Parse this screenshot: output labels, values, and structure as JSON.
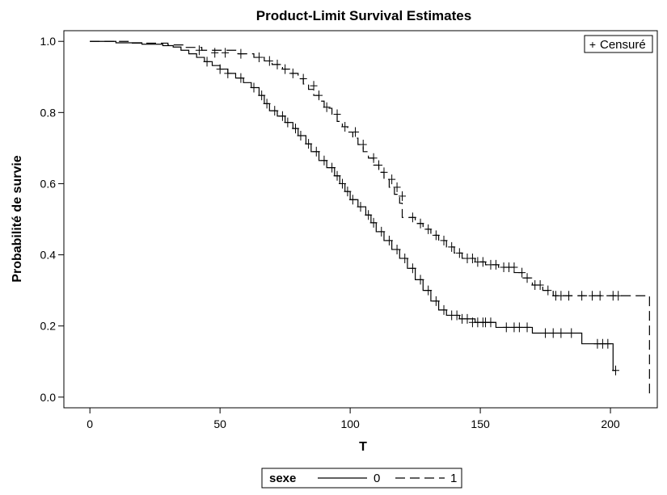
{
  "chart_data": {
    "type": "line",
    "subtype": "kaplan-meier step",
    "title": "Product-Limit Survival Estimates",
    "xlabel": "T",
    "ylabel": "Probabilité de survie",
    "xlim": [
      -10,
      218
    ],
    "ylim": [
      -0.03,
      1.03
    ],
    "xticks": [
      0,
      50,
      100,
      150,
      200
    ],
    "yticks": [
      "0.0",
      "0.2",
      "0.4",
      "0.6",
      "0.8",
      "1.0"
    ],
    "grid": false,
    "censor_legend": {
      "symbol": "+",
      "label": "Censuré",
      "placement": "top-right"
    },
    "legend": {
      "title": "sexe",
      "placement": "bottom-center"
    },
    "series": [
      {
        "name": "0",
        "dash": "solid",
        "steps": [
          [
            0,
            1.0
          ],
          [
            10,
            0.996
          ],
          [
            20,
            0.992
          ],
          [
            28,
            0.988
          ],
          [
            32,
            0.984
          ],
          [
            35,
            0.975
          ],
          [
            38,
            0.965
          ],
          [
            41,
            0.955
          ],
          [
            44,
            0.943
          ],
          [
            47,
            0.932
          ],
          [
            50,
            0.922
          ],
          [
            53,
            0.91
          ],
          [
            56,
            0.897
          ],
          [
            59,
            0.884
          ],
          [
            62,
            0.87
          ],
          [
            65,
            0.848
          ],
          [
            67,
            0.825
          ],
          [
            69,
            0.805
          ],
          [
            72,
            0.79
          ],
          [
            75,
            0.772
          ],
          [
            78,
            0.755
          ],
          [
            80,
            0.735
          ],
          [
            83,
            0.712
          ],
          [
            85,
            0.69
          ],
          [
            88,
            0.665
          ],
          [
            91,
            0.645
          ],
          [
            94,
            0.622
          ],
          [
            96,
            0.6
          ],
          [
            98,
            0.578
          ],
          [
            100,
            0.555
          ],
          [
            103,
            0.535
          ],
          [
            106,
            0.512
          ],
          [
            108,
            0.49
          ],
          [
            110,
            0.465
          ],
          [
            113,
            0.44
          ],
          [
            116,
            0.415
          ],
          [
            119,
            0.39
          ],
          [
            122,
            0.362
          ],
          [
            125,
            0.33
          ],
          [
            128,
            0.3
          ],
          [
            131,
            0.27
          ],
          [
            134,
            0.245
          ],
          [
            137,
            0.23
          ],
          [
            142,
            0.22
          ],
          [
            148,
            0.21
          ],
          [
            156,
            0.196
          ],
          [
            170,
            0.18
          ],
          [
            189,
            0.15
          ],
          [
            201,
            0.075
          ]
        ],
        "censored": [
          [
            45,
            0.943
          ],
          [
            50,
            0.922
          ],
          [
            53,
            0.91
          ],
          [
            58,
            0.897
          ],
          [
            63,
            0.87
          ],
          [
            66,
            0.848
          ],
          [
            68,
            0.825
          ],
          [
            71,
            0.805
          ],
          [
            74,
            0.79
          ],
          [
            76,
            0.772
          ],
          [
            79,
            0.755
          ],
          [
            81,
            0.735
          ],
          [
            84,
            0.712
          ],
          [
            87,
            0.69
          ],
          [
            90,
            0.665
          ],
          [
            93,
            0.645
          ],
          [
            95,
            0.622
          ],
          [
            97,
            0.6
          ],
          [
            99,
            0.578
          ],
          [
            101,
            0.555
          ],
          [
            104,
            0.535
          ],
          [
            107,
            0.512
          ],
          [
            109,
            0.49
          ],
          [
            112,
            0.465
          ],
          [
            115,
            0.44
          ],
          [
            118,
            0.415
          ],
          [
            121,
            0.39
          ],
          [
            124,
            0.362
          ],
          [
            127,
            0.33
          ],
          [
            130,
            0.3
          ],
          [
            133,
            0.27
          ],
          [
            136,
            0.245
          ],
          [
            139,
            0.23
          ],
          [
            141,
            0.23
          ],
          [
            143,
            0.22
          ],
          [
            145,
            0.22
          ],
          [
            147,
            0.21
          ],
          [
            149,
            0.21
          ],
          [
            151,
            0.21
          ],
          [
            152,
            0.21
          ],
          [
            154,
            0.21
          ],
          [
            160,
            0.196
          ],
          [
            163,
            0.196
          ],
          [
            165,
            0.196
          ],
          [
            168,
            0.196
          ],
          [
            175,
            0.18
          ],
          [
            178,
            0.18
          ],
          [
            181,
            0.18
          ],
          [
            185,
            0.18
          ],
          [
            195,
            0.15
          ],
          [
            197,
            0.15
          ],
          [
            199,
            0.15
          ],
          [
            202,
            0.075
          ]
        ],
        "end_x": 202
      },
      {
        "name": "1",
        "dash": "dashed",
        "steps": [
          [
            0,
            1.0
          ],
          [
            15,
            0.995
          ],
          [
            30,
            0.99
          ],
          [
            37,
            0.983
          ],
          [
            43,
            0.975
          ],
          [
            57,
            0.965
          ],
          [
            63,
            0.955
          ],
          [
            67,
            0.945
          ],
          [
            70,
            0.935
          ],
          [
            74,
            0.922
          ],
          [
            77,
            0.91
          ],
          [
            80,
            0.895
          ],
          [
            82,
            0.88
          ],
          [
            84,
            0.865
          ],
          [
            86,
            0.848
          ],
          [
            88,
            0.832
          ],
          [
            90,
            0.812
          ],
          [
            93,
            0.795
          ],
          [
            95,
            0.775
          ],
          [
            97,
            0.76
          ],
          [
            99,
            0.745
          ],
          [
            101,
            0.728
          ],
          [
            103,
            0.71
          ],
          [
            105,
            0.69
          ],
          [
            107,
            0.672
          ],
          [
            109,
            0.652
          ],
          [
            111,
            0.632
          ],
          [
            113,
            0.612
          ],
          [
            115,
            0.59
          ],
          [
            117,
            0.57
          ],
          [
            119,
            0.545
          ],
          [
            120,
            0.505
          ],
          [
            125,
            0.488
          ],
          [
            128,
            0.472
          ],
          [
            131,
            0.455
          ],
          [
            134,
            0.44
          ],
          [
            137,
            0.422
          ],
          [
            140,
            0.405
          ],
          [
            143,
            0.39
          ],
          [
            148,
            0.38
          ],
          [
            152,
            0.372
          ],
          [
            157,
            0.365
          ],
          [
            163,
            0.35
          ],
          [
            166,
            0.335
          ],
          [
            170,
            0.315
          ],
          [
            174,
            0.3
          ],
          [
            178,
            0.285
          ],
          [
            215,
            0.0
          ]
        ],
        "censored": [
          [
            42,
            0.975
          ],
          [
            48,
            0.968
          ],
          [
            52,
            0.968
          ],
          [
            58,
            0.965
          ],
          [
            65,
            0.955
          ],
          [
            69,
            0.945
          ],
          [
            72,
            0.935
          ],
          [
            75,
            0.922
          ],
          [
            78,
            0.91
          ],
          [
            82,
            0.895
          ],
          [
            86,
            0.875
          ],
          [
            88,
            0.848
          ],
          [
            91,
            0.815
          ],
          [
            95,
            0.795
          ],
          [
            98,
            0.76
          ],
          [
            102,
            0.745
          ],
          [
            105,
            0.71
          ],
          [
            109,
            0.672
          ],
          [
            111,
            0.652
          ],
          [
            113,
            0.632
          ],
          [
            116,
            0.612
          ],
          [
            118,
            0.59
          ],
          [
            120,
            0.565
          ],
          [
            124,
            0.505
          ],
          [
            127,
            0.488
          ],
          [
            130,
            0.472
          ],
          [
            133,
            0.455
          ],
          [
            136,
            0.44
          ],
          [
            139,
            0.422
          ],
          [
            142,
            0.405
          ],
          [
            145,
            0.39
          ],
          [
            147,
            0.39
          ],
          [
            149,
            0.38
          ],
          [
            151,
            0.38
          ],
          [
            154,
            0.372
          ],
          [
            156,
            0.372
          ],
          [
            159,
            0.365
          ],
          [
            161,
            0.365
          ],
          [
            163,
            0.365
          ],
          [
            166,
            0.35
          ],
          [
            168,
            0.335
          ],
          [
            171,
            0.315
          ],
          [
            173,
            0.315
          ],
          [
            176,
            0.3
          ],
          [
            179,
            0.285
          ],
          [
            181,
            0.285
          ],
          [
            184,
            0.285
          ],
          [
            189,
            0.285
          ],
          [
            193,
            0.285
          ],
          [
            196,
            0.285
          ],
          [
            201,
            0.285
          ],
          [
            203,
            0.285
          ]
        ],
        "end_x": 215
      }
    ]
  }
}
